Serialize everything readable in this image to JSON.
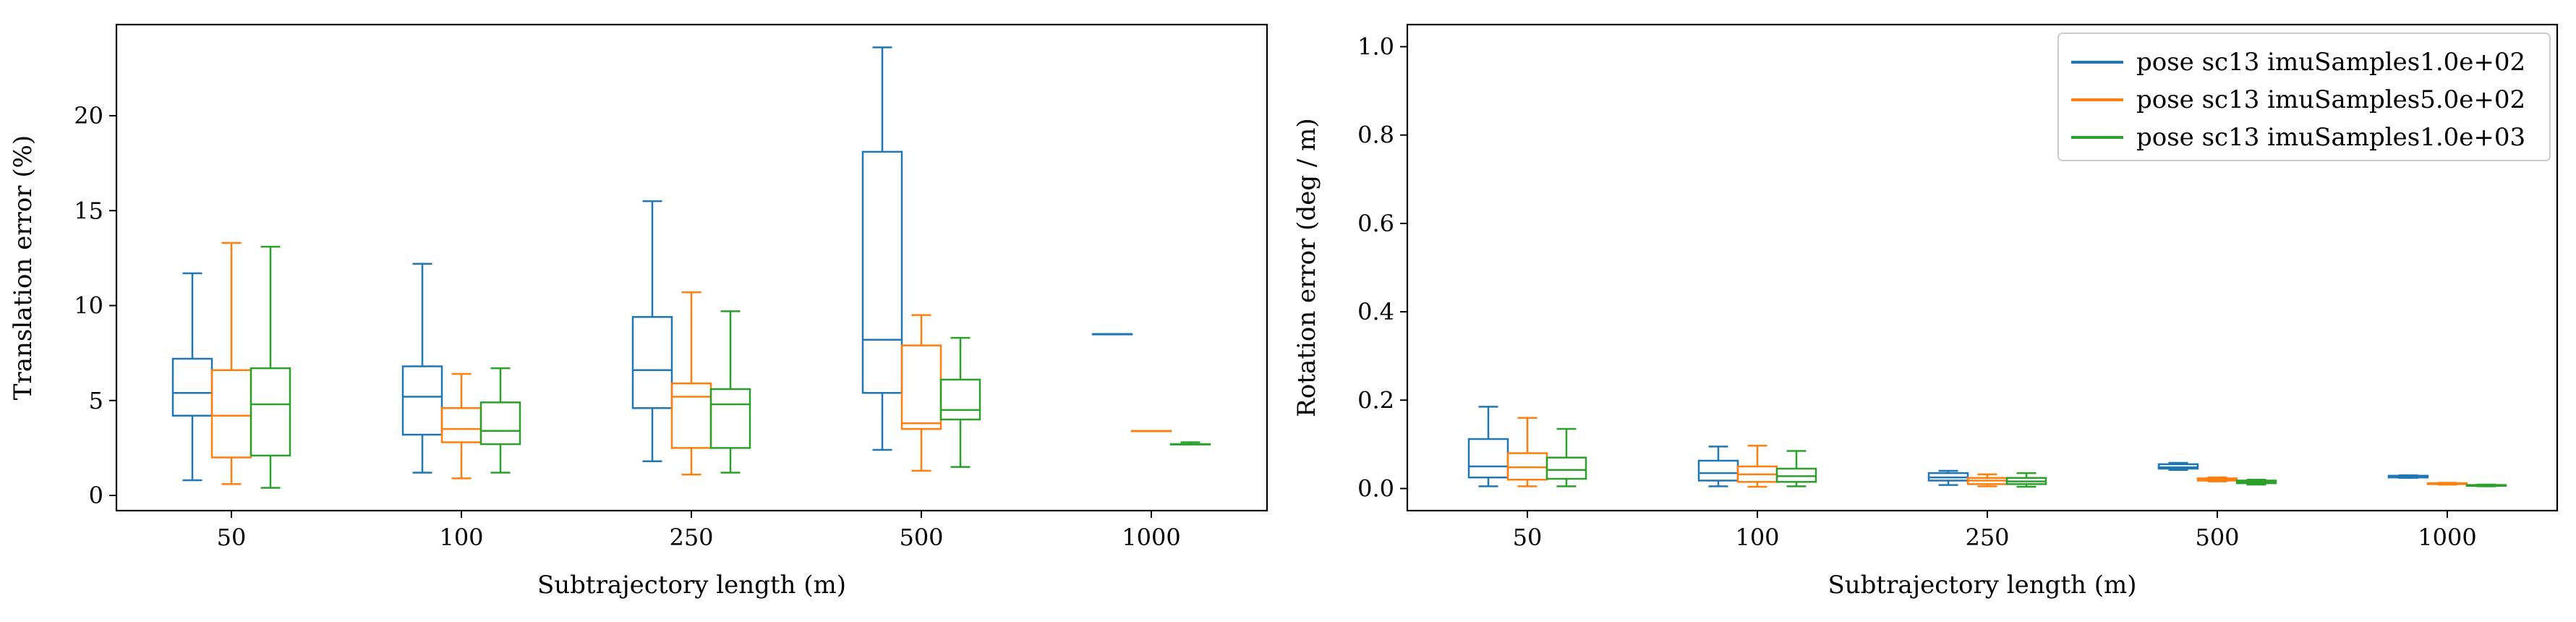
{
  "colors": {
    "series": [
      "#1f77b4",
      "#ff7f0e",
      "#2ca02c"
    ],
    "axes": "#000000",
    "legend_border": "#cccccc"
  },
  "chart_data": [
    {
      "type": "box",
      "xlabel": "Subtrajectory length (m)",
      "ylabel": "Translation error (%)",
      "categories": [
        "50",
        "100",
        "250",
        "500",
        "1000"
      ],
      "ylim": [
        -0.8,
        24.8
      ],
      "yticks": [
        0,
        5,
        10,
        15,
        20
      ],
      "ytick_labels": [
        "0",
        "5",
        "10",
        "15",
        "20"
      ],
      "grid": false,
      "legend": null,
      "series": [
        {
          "name": "pose sc13 imuSamples1.0e+02",
          "boxes": [
            {
              "whisker_low": 0.8,
              "q1": 4.2,
              "median": 5.4,
              "q3": 7.2,
              "whisker_high": 11.7
            },
            {
              "whisker_low": 1.2,
              "q1": 3.2,
              "median": 5.2,
              "q3": 6.8,
              "whisker_high": 12.2
            },
            {
              "whisker_low": 1.8,
              "q1": 4.6,
              "median": 6.6,
              "q3": 9.4,
              "whisker_high": 15.5
            },
            {
              "whisker_low": 2.4,
              "q1": 5.4,
              "median": 8.2,
              "q3": 18.1,
              "whisker_high": 23.6
            },
            {
              "whisker_low": 8.5,
              "q1": 8.5,
              "median": 8.5,
              "q3": 8.5,
              "whisker_high": 8.5
            }
          ]
        },
        {
          "name": "pose sc13 imuSamples5.0e+02",
          "boxes": [
            {
              "whisker_low": 0.6,
              "q1": 2.0,
              "median": 4.2,
              "q3": 6.6,
              "whisker_high": 13.3
            },
            {
              "whisker_low": 0.9,
              "q1": 2.8,
              "median": 3.5,
              "q3": 4.6,
              "whisker_high": 6.4
            },
            {
              "whisker_low": 1.1,
              "q1": 2.5,
              "median": 5.2,
              "q3": 5.9,
              "whisker_high": 10.7
            },
            {
              "whisker_low": 1.3,
              "q1": 3.5,
              "median": 3.8,
              "q3": 7.9,
              "whisker_high": 9.5
            },
            {
              "whisker_low": 3.4,
              "q1": 3.4,
              "median": 3.4,
              "q3": 3.4,
              "whisker_high": 3.4
            }
          ]
        },
        {
          "name": "pose sc13 imuSamples1.0e+03",
          "boxes": [
            {
              "whisker_low": 0.4,
              "q1": 2.1,
              "median": 4.8,
              "q3": 6.7,
              "whisker_high": 13.1
            },
            {
              "whisker_low": 1.2,
              "q1": 2.7,
              "median": 3.4,
              "q3": 4.9,
              "whisker_high": 6.7
            },
            {
              "whisker_low": 1.2,
              "q1": 2.5,
              "median": 4.8,
              "q3": 5.6,
              "whisker_high": 9.7
            },
            {
              "whisker_low": 1.5,
              "q1": 4.0,
              "median": 4.5,
              "q3": 6.1,
              "whisker_high": 8.3
            },
            {
              "whisker_low": 2.7,
              "q1": 2.7,
              "median": 2.7,
              "q3": 2.7,
              "whisker_high": 2.8
            }
          ]
        }
      ]
    },
    {
      "type": "box",
      "xlabel": "Subtrajectory length (m)",
      "ylabel": "Rotation error (deg / m)",
      "categories": [
        "50",
        "100",
        "250",
        "500",
        "1000"
      ],
      "ylim": [
        -0.05,
        1.05
      ],
      "yticks": [
        0.0,
        0.2,
        0.4,
        0.6,
        0.8,
        1.0
      ],
      "ytick_labels": [
        "0.0",
        "0.2",
        "0.4",
        "0.6",
        "0.8",
        "1.0"
      ],
      "grid": false,
      "legend": "top-right",
      "legend_entries": [
        "pose sc13 imuSamples1.0e+02",
        "pose sc13 imuSamples5.0e+02",
        "pose sc13 imuSamples1.0e+03"
      ],
      "series": [
        {
          "name": "pose sc13 imuSamples1.0e+02",
          "boxes": [
            {
              "whisker_low": 0.005,
              "q1": 0.025,
              "median": 0.05,
              "q3": 0.112,
              "whisker_high": 0.185
            },
            {
              "whisker_low": 0.005,
              "q1": 0.018,
              "median": 0.035,
              "q3": 0.063,
              "whisker_high": 0.095
            },
            {
              "whisker_low": 0.008,
              "q1": 0.018,
              "median": 0.025,
              "q3": 0.035,
              "whisker_high": 0.04
            },
            {
              "whisker_low": 0.042,
              "q1": 0.045,
              "median": 0.048,
              "q3": 0.055,
              "whisker_high": 0.058
            },
            {
              "whisker_low": 0.024,
              "q1": 0.025,
              "median": 0.027,
              "q3": 0.029,
              "whisker_high": 0.03
            }
          ]
        },
        {
          "name": "pose sc13 imuSamples5.0e+02",
          "boxes": [
            {
              "whisker_low": 0.005,
              "q1": 0.02,
              "median": 0.048,
              "q3": 0.08,
              "whisker_high": 0.16
            },
            {
              "whisker_low": 0.004,
              "q1": 0.015,
              "median": 0.032,
              "q3": 0.05,
              "whisker_high": 0.097
            },
            {
              "whisker_low": 0.005,
              "q1": 0.01,
              "median": 0.018,
              "q3": 0.024,
              "whisker_high": 0.032
            },
            {
              "whisker_low": 0.016,
              "q1": 0.018,
              "median": 0.02,
              "q3": 0.023,
              "whisker_high": 0.025
            },
            {
              "whisker_low": 0.009,
              "q1": 0.01,
              "median": 0.011,
              "q3": 0.012,
              "whisker_high": 0.013
            }
          ]
        },
        {
          "name": "pose sc13 imuSamples1.0e+03",
          "boxes": [
            {
              "whisker_low": 0.005,
              "q1": 0.022,
              "median": 0.042,
              "q3": 0.07,
              "whisker_high": 0.135
            },
            {
              "whisker_low": 0.005,
              "q1": 0.015,
              "median": 0.028,
              "q3": 0.045,
              "whisker_high": 0.085
            },
            {
              "whisker_low": 0.004,
              "q1": 0.01,
              "median": 0.016,
              "q3": 0.024,
              "whisker_high": 0.035
            },
            {
              "whisker_low": 0.009,
              "q1": 0.012,
              "median": 0.015,
              "q3": 0.018,
              "whisker_high": 0.02
            },
            {
              "whisker_low": 0.005,
              "q1": 0.006,
              "median": 0.007,
              "q3": 0.008,
              "whisker_high": 0.009
            }
          ]
        }
      ]
    }
  ]
}
